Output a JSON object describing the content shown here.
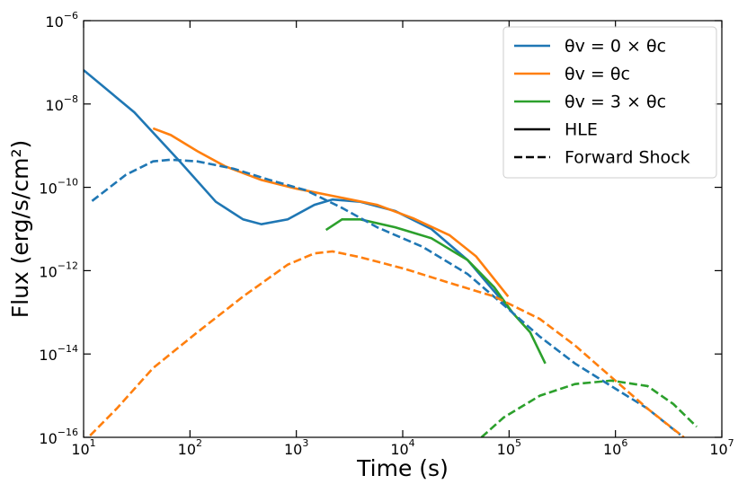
{
  "chart_data": {
    "type": "line",
    "x_label": "Time (s)",
    "y_label": "Flux (erg/s/cm²)",
    "xscale": "log",
    "yscale": "log",
    "xlim": [
      10,
      10000000
    ],
    "ylim": [
      1e-16,
      1e-06
    ],
    "xticks": [
      {
        "value": 10,
        "label": "10^1"
      },
      {
        "value": 100,
        "label": "10^2"
      },
      {
        "value": 1000,
        "label": "10^3"
      },
      {
        "value": 10000,
        "label": "10^4"
      },
      {
        "value": 100000,
        "label": "10^5"
      },
      {
        "value": 1000000,
        "label": "10^6"
      },
      {
        "value": 10000000,
        "label": "10^7"
      }
    ],
    "yticks": [
      {
        "value": 1e-16,
        "label": "10^−16"
      },
      {
        "value": 1e-14,
        "label": "10^−14"
      },
      {
        "value": 1e-12,
        "label": "10^−12"
      },
      {
        "value": 1e-10,
        "label": "10^−10"
      },
      {
        "value": 1e-08,
        "label": "10^−8"
      },
      {
        "value": 1e-06,
        "label": "10^−6"
      }
    ],
    "legend": "upper right",
    "series": [
      {
        "name": "θv = 0 × θc",
        "color": "#1f77b4",
        "style": "solid",
        "x": [
          10,
          30,
          80,
          175,
          316,
          470,
          830,
          1480,
          2190,
          4000,
          8500,
          18600,
          40700,
          72400,
          107000
        ],
        "values": [
          6.5e-08,
          6.3e-09,
          4.2e-10,
          4.5e-11,
          1.7e-11,
          1.3e-11,
          1.7e-11,
          3.8e-11,
          5.1e-11,
          4.5e-11,
          2.7e-11,
          1e-11,
          1.8e-12,
          3.2e-13,
          1e-13
        ]
      },
      {
        "name": "θv = θc",
        "color": "#ff7f0e",
        "style": "solid",
        "x": [
          45,
          66,
          117,
          214,
          468,
          1000,
          2690,
          5750,
          12600,
          27500,
          49000,
          98000
        ],
        "values": [
          2.6e-09,
          1.8e-09,
          7.4e-10,
          3.2e-10,
          1.5e-10,
          9.3e-11,
          5.6e-11,
          3.8e-11,
          1.8e-11,
          7.1e-12,
          2.2e-12,
          2.4e-13
        ]
      },
      {
        "name": "θv = 3 × θc",
        "color": "#2ca02c",
        "style": "solid",
        "x": [
          1900,
          2690,
          4000,
          8500,
          18600,
          40700,
          72400,
          107000,
          158000,
          219000
        ],
        "values": [
          9.5e-12,
          1.7e-11,
          1.7e-11,
          1.1e-11,
          6e-12,
          1.8e-12,
          4e-13,
          1e-13,
          3.3e-14,
          5.9e-15
        ]
      },
      {
        "color": "#1f77b4",
        "style": "dashed",
        "x": [
          12,
          25,
          45,
          66,
          117,
          257,
          562,
          1230,
          2690,
          5750,
          15500,
          40700,
          89000,
          195000,
          417000,
          912000,
          2000000,
          4070000
        ],
        "values": [
          4.7e-11,
          2e-10,
          4.2e-10,
          4.6e-10,
          4.2e-10,
          2.8e-10,
          1.5e-10,
          8.5e-11,
          3.2e-11,
          1.1e-11,
          3.7e-12,
          8.3e-13,
          1.5e-13,
          2.6e-14,
          5.9e-15,
          1.7e-15,
          4.9e-16,
          1.15e-16
        ]
      },
      {
        "color": "#ff7f0e",
        "style": "dashed",
        "x": [
          11.5,
          20.5,
          45,
          117,
          316,
          832,
          1480,
          2190,
          4000,
          10500,
          27500,
          72400,
          195000,
          417000,
          912000,
          2000000,
          4400000
        ],
        "values": [
          1.1e-16,
          4.9e-16,
          4.6e-15,
          3.3e-14,
          2.4e-13,
          1.4e-12,
          2.6e-12,
          2.9e-12,
          2.1e-12,
          1.1e-12,
          5.1e-13,
          2.4e-13,
          6.9e-14,
          1.6e-14,
          2.8e-15,
          4.9e-16,
          1e-16
        ]
      },
      {
        "color": "#2ca02c",
        "style": "dashed",
        "x": [
          55000,
          89000,
          195000,
          417000,
          912000,
          2000000,
          3500000,
          5800000
        ],
        "values": [
          1e-16,
          3e-16,
          1e-15,
          1.9e-15,
          2.3e-15,
          1.7e-15,
          6.3e-16,
          1.8e-16
        ]
      }
    ],
    "legend_entries": [
      {
        "name": "HLE",
        "color": "#000000",
        "style": "solid"
      },
      {
        "name": "Forward Shock",
        "color": "#000000",
        "style": "dashed"
      }
    ]
  }
}
